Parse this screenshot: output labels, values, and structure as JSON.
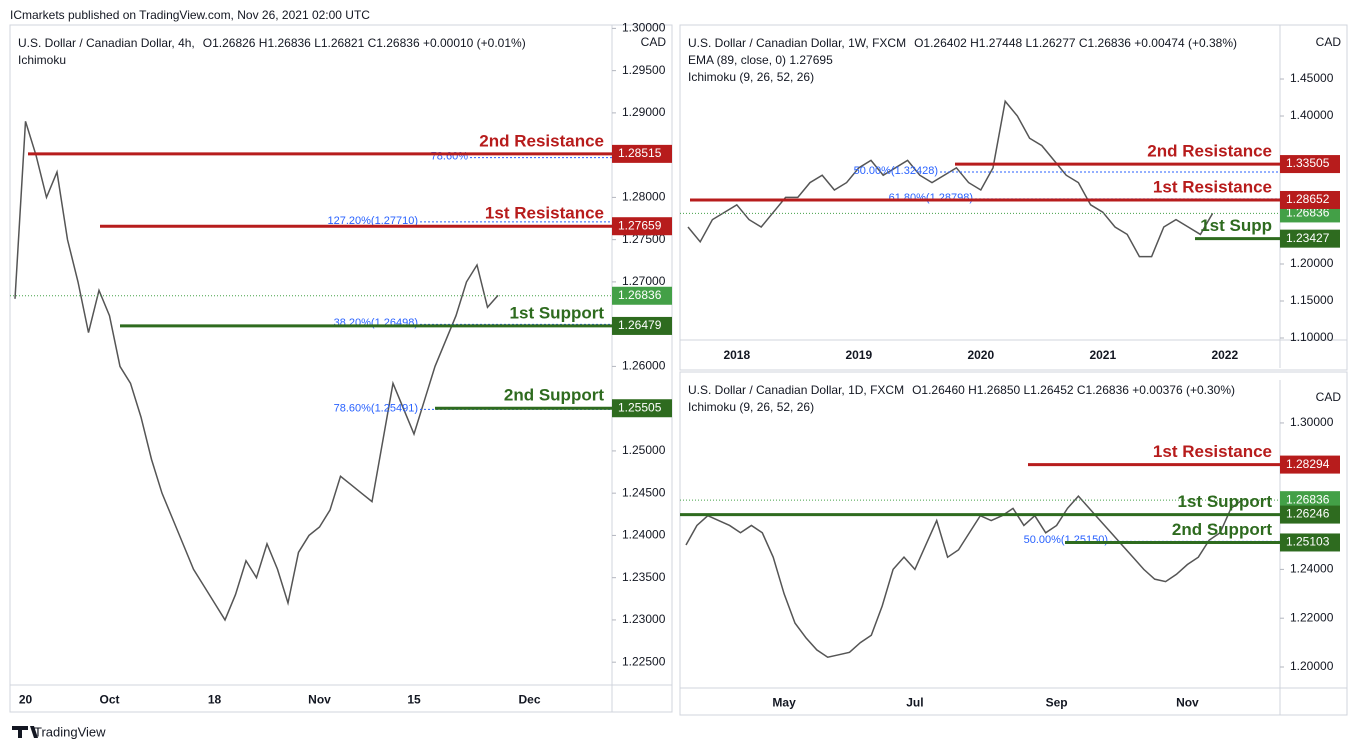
{
  "header": "ICmarkets published on TradingView.com, Nov 26, 2021 02:00 UTC",
  "footer": "TradingView",
  "chart_data": [
    {
      "type": "line",
      "title": "U.S. Dollar / Canadian Dollar, 4h,",
      "ohlc": "O1.26826 H1.26836 L1.26821 C1.26836 +0.00010 (+0.01%)",
      "indicators": [
        "Ichimoku"
      ],
      "currency": "CAD",
      "color": "#555555",
      "categories": [
        null,
        "20",
        null,
        null,
        null,
        null,
        null,
        null,
        null,
        "Oct",
        null,
        null,
        null,
        null,
        null,
        null,
        null,
        null,
        null,
        "18",
        null,
        null,
        null,
        null,
        null,
        null,
        null,
        null,
        null,
        "Nov",
        null,
        null,
        null,
        null,
        null,
        null,
        null,
        null,
        "15",
        null,
        null,
        null,
        null,
        null,
        null,
        null,
        null,
        null,
        null,
        "Dec"
      ],
      "values": [
        1.268,
        1.289,
        1.285,
        1.28,
        1.283,
        1.275,
        1.27,
        1.264,
        1.269,
        1.266,
        1.26,
        1.258,
        1.254,
        1.249,
        1.245,
        1.242,
        1.239,
        1.236,
        1.234,
        1.232,
        1.23,
        1.233,
        1.237,
        1.235,
        1.239,
        1.236,
        1.232,
        1.238,
        1.24,
        1.241,
        1.243,
        1.247,
        1.246,
        1.245,
        1.244,
        1.251,
        1.258,
        1.255,
        1.252,
        1.256,
        1.26,
        1.263,
        1.266,
        1.27,
        1.272,
        1.267,
        1.2684,
        null,
        null,
        null
      ],
      "ylim": [
        1.2223,
        1.3004
      ],
      "yticks": [
        {
          "value": 1.3,
          "label": "1.30000"
        },
        {
          "value": 1.295,
          "label": "1.29500"
        },
        {
          "value": 1.29,
          "label": "1.29000"
        },
        {
          "value": 1.28,
          "label": "1.28000"
        },
        {
          "value": 1.275,
          "label": "1.27500"
        },
        {
          "value": 1.27,
          "label": "1.27000"
        },
        {
          "value": 1.26,
          "label": "1.26000"
        },
        {
          "value": 1.25,
          "label": "1.25000"
        },
        {
          "value": 1.245,
          "label": "1.24500"
        },
        {
          "value": 1.24,
          "label": "1.24000"
        },
        {
          "value": 1.235,
          "label": "1.23500"
        },
        {
          "value": 1.23,
          "label": "1.23000"
        },
        {
          "value": 1.225,
          "label": "1.22500"
        }
      ],
      "levels": [
        {
          "name": "2nd Resistance",
          "value": 1.28515,
          "color": "#b71c1c"
        },
        {
          "name": "1st Resistance",
          "value": 1.27659,
          "color": "#b71c1c"
        },
        {
          "name": "1st Support",
          "value": 1.26479,
          "color": "#2e6b1f"
        },
        {
          "name": "2nd Support",
          "value": 1.25505,
          "color": "#2e6b1f"
        }
      ],
      "fibs": [
        {
          "label": "78.60%",
          "value": 1.2847
        },
        {
          "label": "127.20%(1.27710)",
          "value": 1.2771
        },
        {
          "label": "38.20%(1.26498)",
          "value": 1.26498
        },
        {
          "label": "78.60%(1.25491)",
          "value": 1.25491
        }
      ],
      "last": 1.26836,
      "last_color": "#43a047"
    },
    {
      "type": "line",
      "title": "U.S. Dollar / Canadian Dollar, 1W, FXCM",
      "ohlc": "O1.26402 H1.27448 L1.26277 C1.26836 +0.00474 (+0.38%)",
      "indicators": [
        "EMA (89, close, 0) 1.27695",
        "Ichimoku (9, 26, 52, 26)"
      ],
      "currency": "CAD",
      "color": "#555555",
      "categories": [
        null,
        null,
        null,
        null,
        "2018",
        null,
        null,
        null,
        null,
        null,
        null,
        null,
        null,
        null,
        "2019",
        null,
        null,
        null,
        null,
        null,
        null,
        null,
        null,
        null,
        "2020",
        null,
        null,
        null,
        null,
        null,
        null,
        null,
        null,
        null,
        "2021",
        null,
        null,
        null,
        null,
        null,
        null,
        null,
        null,
        null,
        "2022",
        null
      ],
      "values": [
        1.25,
        1.23,
        1.26,
        1.27,
        1.28,
        1.26,
        1.25,
        1.27,
        1.29,
        1.29,
        1.31,
        1.32,
        1.3,
        1.31,
        1.33,
        1.34,
        1.32,
        1.33,
        1.34,
        1.32,
        1.31,
        1.32,
        1.33,
        1.31,
        1.3,
        1.33,
        1.42,
        1.4,
        1.37,
        1.36,
        1.34,
        1.32,
        1.31,
        1.28,
        1.27,
        1.25,
        1.24,
        1.21,
        1.21,
        1.25,
        1.26,
        1.25,
        1.24,
        1.2684,
        null,
        null
      ],
      "ylim": [
        1.0973,
        1.523
      ],
      "yticks": [
        {
          "value": 1.45,
          "label": "1.45000"
        },
        {
          "value": 1.4,
          "label": "1.40000"
        },
        {
          "value": 1.2,
          "label": "1.20000"
        },
        {
          "value": 1.15,
          "label": "1.15000"
        },
        {
          "value": 1.1,
          "label": "1.10000"
        }
      ],
      "levels": [
        {
          "name": "2nd Resistance",
          "value": 1.33505,
          "color": "#b71c1c"
        },
        {
          "name": "1st Resistance",
          "value": 1.28652,
          "color": "#b71c1c"
        },
        {
          "name": "1st Supp",
          "value": 1.23427,
          "color": "#2e6b1f"
        }
      ],
      "fibs": [
        {
          "label": "50.00%(1.32428)",
          "value": 1.32428
        },
        {
          "label": "61.80%(1.28798)",
          "value": 1.28798
        }
      ],
      "last": 1.26836,
      "last_color": "#43a047"
    },
    {
      "type": "line",
      "title": "U.S. Dollar / Canadian Dollar, 1D, FXCM",
      "ohlc": "O1.26460 H1.26850 L1.26452 C1.26836 +0.00376 (+0.30%)",
      "indicators": [
        "Ichimoku (9, 26, 52, 26)"
      ],
      "currency": "CAD",
      "color": "#555555",
      "categories": [
        null,
        null,
        null,
        null,
        null,
        null,
        null,
        null,
        null,
        "May",
        null,
        null,
        null,
        null,
        null,
        null,
        null,
        null,
        null,
        null,
        null,
        "Jul",
        null,
        null,
        null,
        null,
        null,
        null,
        null,
        null,
        null,
        null,
        null,
        null,
        "Sep",
        null,
        null,
        null,
        null,
        null,
        null,
        null,
        null,
        null,
        null,
        null,
        "Nov",
        null,
        null,
        null,
        null,
        null
      ],
      "values": [
        1.25,
        1.258,
        1.262,
        1.26,
        1.258,
        1.255,
        1.258,
        1.255,
        1.245,
        1.23,
        1.218,
        1.212,
        1.207,
        1.204,
        1.205,
        1.206,
        1.21,
        1.213,
        1.225,
        1.24,
        1.245,
        1.24,
        1.25,
        1.26,
        1.245,
        1.248,
        1.255,
        1.262,
        1.26,
        1.262,
        1.265,
        1.258,
        1.262,
        1.255,
        1.258,
        1.265,
        1.27,
        1.265,
        1.26,
        1.255,
        1.25,
        1.245,
        1.24,
        1.236,
        1.235,
        1.238,
        1.242,
        1.245,
        1.252,
        1.255,
        1.265,
        1.2684
      ],
      "ylim": [
        1.1914,
        1.3176
      ],
      "yticks": [
        {
          "value": 1.3,
          "label": "1.30000"
        },
        {
          "value": 1.24,
          "label": "1.24000"
        },
        {
          "value": 1.22,
          "label": "1.22000"
        },
        {
          "value": 1.2,
          "label": "1.20000"
        }
      ],
      "levels": [
        {
          "name": "1st Resistance",
          "value": 1.28294,
          "color": "#b71c1c"
        },
        {
          "name": "1st Support",
          "value": 1.26246,
          "color": "#2e6b1f"
        },
        {
          "name": "2nd Support",
          "value": 1.25103,
          "color": "#2e6b1f"
        }
      ],
      "fibs": [
        {
          "label": "50.00%(1.25150)",
          "value": 1.2515
        }
      ],
      "last": 1.26836,
      "last_color": "#43a047"
    }
  ]
}
